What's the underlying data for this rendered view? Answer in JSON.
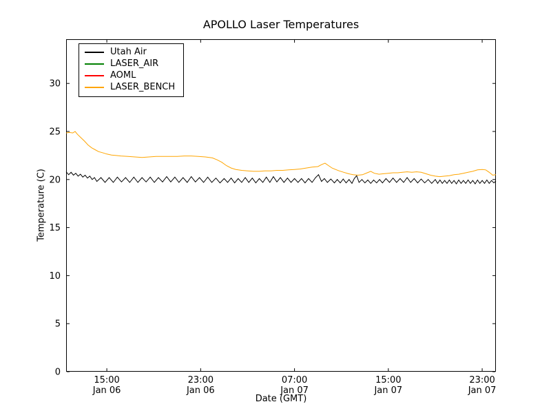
{
  "figure": {
    "background": "#ffffff",
    "axes_border": "#000000"
  },
  "chart_data": {
    "type": "line",
    "title": "APOLLO Laser Temperatures",
    "xlabel": "Date (GMT)",
    "ylabel": "Temperature (C)",
    "grid": false,
    "legend_position": "upper-left",
    "x_unit": "hours since Jan 06 00:00 GMT",
    "xlim": [
      11.53,
      48.17
    ],
    "ylim": [
      0,
      34.6
    ],
    "yticks": [
      0,
      5,
      10,
      15,
      20,
      25,
      30
    ],
    "xticks": [
      {
        "value": 15,
        "time": "15:00",
        "date": "Jan 06"
      },
      {
        "value": 23,
        "time": "23:00",
        "date": "Jan 06"
      },
      {
        "value": 31,
        "time": "07:00",
        "date": "Jan 07"
      },
      {
        "value": 39,
        "time": "15:00",
        "date": "Jan 07"
      },
      {
        "value": 47,
        "time": "23:00",
        "date": "Jan 07"
      }
    ],
    "series": [
      {
        "name": "Utah Air",
        "color": "#000000",
        "points": [
          [
            11.53,
            20.8
          ],
          [
            11.75,
            20.5
          ],
          [
            11.95,
            20.75
          ],
          [
            12.15,
            20.45
          ],
          [
            12.35,
            20.65
          ],
          [
            12.55,
            20.35
          ],
          [
            12.75,
            20.55
          ],
          [
            12.95,
            20.25
          ],
          [
            13.15,
            20.45
          ],
          [
            13.35,
            20.15
          ],
          [
            13.55,
            20.35
          ],
          [
            13.75,
            20.0
          ],
          [
            13.95,
            20.2
          ],
          [
            14.15,
            19.8
          ],
          [
            14.5,
            20.2
          ],
          [
            14.85,
            19.7
          ],
          [
            15.2,
            20.2
          ],
          [
            15.55,
            19.7
          ],
          [
            15.9,
            20.25
          ],
          [
            16.25,
            19.75
          ],
          [
            16.6,
            20.2
          ],
          [
            16.95,
            19.7
          ],
          [
            17.3,
            20.25
          ],
          [
            17.65,
            19.7
          ],
          [
            18.0,
            20.2
          ],
          [
            18.35,
            19.75
          ],
          [
            18.7,
            20.25
          ],
          [
            19.05,
            19.7
          ],
          [
            19.4,
            20.2
          ],
          [
            19.75,
            19.75
          ],
          [
            20.1,
            20.3
          ],
          [
            20.45,
            19.75
          ],
          [
            20.8,
            20.25
          ],
          [
            21.15,
            19.7
          ],
          [
            21.5,
            20.2
          ],
          [
            21.85,
            19.7
          ],
          [
            22.2,
            20.3
          ],
          [
            22.55,
            19.75
          ],
          [
            22.9,
            20.2
          ],
          [
            23.25,
            19.7
          ],
          [
            23.6,
            20.25
          ],
          [
            23.95,
            19.7
          ],
          [
            24.3,
            20.15
          ],
          [
            24.65,
            19.65
          ],
          [
            25.0,
            20.1
          ],
          [
            25.3,
            19.7
          ],
          [
            25.6,
            20.15
          ],
          [
            25.9,
            19.65
          ],
          [
            26.2,
            20.1
          ],
          [
            26.5,
            19.7
          ],
          [
            26.8,
            20.2
          ],
          [
            27.1,
            19.7
          ],
          [
            27.4,
            20.15
          ],
          [
            27.7,
            19.65
          ],
          [
            28.0,
            20.1
          ],
          [
            28.3,
            19.7
          ],
          [
            28.6,
            20.25
          ],
          [
            28.9,
            19.7
          ],
          [
            29.2,
            20.3
          ],
          [
            29.5,
            19.75
          ],
          [
            29.8,
            20.2
          ],
          [
            30.1,
            19.7
          ],
          [
            30.4,
            20.15
          ],
          [
            30.7,
            19.7
          ],
          [
            31.0,
            20.1
          ],
          [
            31.3,
            19.7
          ],
          [
            31.6,
            20.1
          ],
          [
            31.9,
            19.65
          ],
          [
            32.2,
            20.1
          ],
          [
            32.5,
            19.7
          ],
          [
            32.8,
            20.2
          ],
          [
            33.05,
            20.5
          ],
          [
            33.3,
            19.8
          ],
          [
            33.55,
            20.1
          ],
          [
            33.8,
            19.7
          ],
          [
            34.1,
            20.05
          ],
          [
            34.4,
            19.65
          ],
          [
            34.65,
            20.0
          ],
          [
            34.9,
            19.65
          ],
          [
            35.15,
            20.05
          ],
          [
            35.4,
            19.65
          ],
          [
            35.65,
            20.0
          ],
          [
            35.9,
            19.6
          ],
          [
            36.1,
            20.1
          ],
          [
            36.3,
            20.4
          ],
          [
            36.5,
            19.7
          ],
          [
            36.75,
            20.0
          ],
          [
            37.0,
            19.65
          ],
          [
            37.25,
            19.95
          ],
          [
            37.5,
            19.6
          ],
          [
            37.75,
            19.95
          ],
          [
            38.0,
            19.65
          ],
          [
            38.25,
            20.0
          ],
          [
            38.5,
            19.65
          ],
          [
            38.8,
            20.1
          ],
          [
            39.1,
            19.7
          ],
          [
            39.4,
            20.15
          ],
          [
            39.7,
            19.7
          ],
          [
            40.0,
            20.1
          ],
          [
            40.3,
            19.7
          ],
          [
            40.6,
            20.2
          ],
          [
            40.9,
            19.7
          ],
          [
            41.2,
            20.1
          ],
          [
            41.5,
            19.65
          ],
          [
            41.8,
            20.05
          ],
          [
            42.1,
            19.65
          ],
          [
            42.4,
            20.0
          ],
          [
            42.7,
            19.6
          ],
          [
            43.0,
            20.0
          ],
          [
            43.2,
            19.6
          ],
          [
            43.4,
            19.95
          ],
          [
            43.6,
            19.6
          ],
          [
            43.8,
            19.9
          ],
          [
            44.0,
            19.6
          ],
          [
            44.2,
            19.95
          ],
          [
            44.4,
            19.6
          ],
          [
            44.6,
            19.9
          ],
          [
            44.8,
            19.55
          ],
          [
            45.0,
            19.95
          ],
          [
            45.2,
            19.6
          ],
          [
            45.4,
            19.9
          ],
          [
            45.6,
            19.6
          ],
          [
            45.8,
            19.95
          ],
          [
            46.0,
            19.6
          ],
          [
            46.2,
            19.9
          ],
          [
            46.4,
            19.55
          ],
          [
            46.6,
            19.95
          ],
          [
            46.8,
            19.6
          ],
          [
            47.0,
            19.9
          ],
          [
            47.2,
            19.6
          ],
          [
            47.4,
            19.95
          ],
          [
            47.6,
            19.6
          ],
          [
            47.8,
            19.9
          ],
          [
            48.0,
            19.65
          ],
          [
            48.17,
            19.85
          ]
        ]
      },
      {
        "name": "LASER_AIR",
        "color": "#007f00",
        "points": []
      },
      {
        "name": "AOML",
        "color": "#ff0000",
        "points": []
      },
      {
        "name": "LASER_BENCH",
        "color": "#ffa500",
        "points": [
          [
            11.53,
            24.85
          ],
          [
            11.8,
            24.9
          ],
          [
            12.1,
            24.85
          ],
          [
            12.3,
            25.0
          ],
          [
            12.5,
            24.7
          ],
          [
            12.8,
            24.35
          ],
          [
            13.1,
            24.0
          ],
          [
            13.4,
            23.6
          ],
          [
            13.7,
            23.3
          ],
          [
            14.0,
            23.1
          ],
          [
            14.3,
            22.9
          ],
          [
            14.6,
            22.8
          ],
          [
            15.0,
            22.65
          ],
          [
            15.4,
            22.55
          ],
          [
            15.8,
            22.5
          ],
          [
            16.2,
            22.45
          ],
          [
            16.8,
            22.4
          ],
          [
            17.4,
            22.35
          ],
          [
            18.0,
            22.3
          ],
          [
            18.6,
            22.35
          ],
          [
            19.2,
            22.4
          ],
          [
            19.8,
            22.4
          ],
          [
            20.4,
            22.4
          ],
          [
            21.0,
            22.4
          ],
          [
            21.6,
            22.45
          ],
          [
            22.2,
            22.45
          ],
          [
            22.8,
            22.4
          ],
          [
            23.4,
            22.35
          ],
          [
            24.0,
            22.25
          ],
          [
            24.4,
            22.05
          ],
          [
            24.8,
            21.8
          ],
          [
            25.2,
            21.45
          ],
          [
            25.6,
            21.2
          ],
          [
            26.0,
            21.05
          ],
          [
            26.5,
            20.95
          ],
          [
            27.0,
            20.9
          ],
          [
            27.5,
            20.85
          ],
          [
            28.0,
            20.85
          ],
          [
            28.5,
            20.9
          ],
          [
            29.0,
            20.9
          ],
          [
            29.5,
            20.95
          ],
          [
            30.0,
            20.95
          ],
          [
            30.5,
            21.0
          ],
          [
            31.0,
            21.05
          ],
          [
            31.5,
            21.1
          ],
          [
            32.0,
            21.2
          ],
          [
            32.5,
            21.3
          ],
          [
            33.0,
            21.35
          ],
          [
            33.3,
            21.55
          ],
          [
            33.6,
            21.7
          ],
          [
            33.9,
            21.45
          ],
          [
            34.2,
            21.2
          ],
          [
            34.5,
            21.05
          ],
          [
            34.8,
            20.9
          ],
          [
            35.2,
            20.75
          ],
          [
            35.6,
            20.6
          ],
          [
            36.0,
            20.5
          ],
          [
            36.4,
            20.45
          ],
          [
            36.8,
            20.5
          ],
          [
            37.2,
            20.7
          ],
          [
            37.5,
            20.85
          ],
          [
            37.8,
            20.65
          ],
          [
            38.2,
            20.55
          ],
          [
            38.6,
            20.6
          ],
          [
            39.0,
            20.65
          ],
          [
            39.4,
            20.7
          ],
          [
            39.8,
            20.7
          ],
          [
            40.2,
            20.75
          ],
          [
            40.6,
            20.8
          ],
          [
            41.0,
            20.75
          ],
          [
            41.4,
            20.8
          ],
          [
            41.8,
            20.75
          ],
          [
            42.2,
            20.6
          ],
          [
            42.6,
            20.45
          ],
          [
            43.0,
            20.35
          ],
          [
            43.4,
            20.3
          ],
          [
            43.8,
            20.35
          ],
          [
            44.2,
            20.4
          ],
          [
            44.6,
            20.5
          ],
          [
            45.0,
            20.55
          ],
          [
            45.4,
            20.65
          ],
          [
            45.8,
            20.75
          ],
          [
            46.2,
            20.85
          ],
          [
            46.6,
            21.0
          ],
          [
            47.0,
            21.05
          ],
          [
            47.3,
            21.0
          ],
          [
            47.6,
            20.75
          ],
          [
            47.9,
            20.45
          ],
          [
            48.17,
            20.5
          ]
        ]
      }
    ]
  }
}
